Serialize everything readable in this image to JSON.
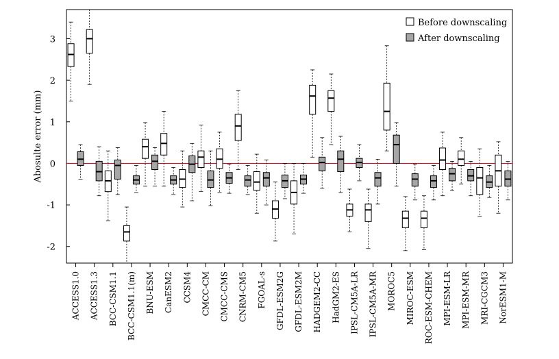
{
  "chart_data": {
    "type": "box",
    "ylabel": "Abosulte error (mm)",
    "ylim": [
      -2.4,
      3.7
    ],
    "yticks": [
      "-2",
      "-1",
      "0",
      "1",
      "2",
      "3"
    ],
    "reference_line": 0,
    "legend": {
      "position": "top-right",
      "entries": [
        "Before downscaling",
        "After downscaling"
      ]
    },
    "colors": {
      "before": "#ffffff",
      "after": "#a6a6a6",
      "reference": "#8b2b2b"
    },
    "categories": [
      "ACCESS1.0",
      "ACCESS1.3",
      "BCC-CSM1.1",
      "BCC-CSM1.1(m)",
      "BNU-ESM",
      "CanESM2",
      "CCSM4",
      "CMCC-CM",
      "CMCC-CMS",
      "CNRM-CM5",
      "FGOAL-s",
      "GFDL-ESM2G",
      "GFDL-ESM2M",
      "HADGEM2-CC",
      "HadGM2-ES",
      "IPSL-CM5A-LR",
      "IPSL-CM5A-MR",
      "MOROC5",
      "MIROC-ESM",
      "ROC-ESM-CHEM",
      "MPI-ESM-LR",
      "MPI-ESM-MR",
      "MRI-CGCM3",
      "NorESM1-M"
    ],
    "series": [
      {
        "name": "Before downscaling",
        "boxes": [
          {
            "min": 1.5,
            "q1": 2.33,
            "median": 2.62,
            "q3": 2.88,
            "max": 3.4
          },
          {
            "min": 1.9,
            "q1": 2.65,
            "median": 3.0,
            "q3": 3.22,
            "max": 3.7
          },
          {
            "min": -1.38,
            "q1": -0.68,
            "median": -0.42,
            "q3": -0.18,
            "max": 0.3
          },
          {
            "min": -2.4,
            "q1": -1.87,
            "median": -1.65,
            "q3": -1.5,
            "max": -1.05
          },
          {
            "min": -0.55,
            "q1": 0.12,
            "median": 0.4,
            "q3": 0.58,
            "max": 0.98
          },
          {
            "min": -0.55,
            "q1": 0.2,
            "median": 0.48,
            "q3": 0.72,
            "max": 1.25
          },
          {
            "min": -1.05,
            "q1": -0.58,
            "median": -0.38,
            "q3": -0.15,
            "max": 0.3
          },
          {
            "min": -0.68,
            "q1": -0.1,
            "median": 0.15,
            "q3": 0.3,
            "max": 0.92
          },
          {
            "min": -0.7,
            "q1": -0.12,
            "median": 0.1,
            "q3": 0.35,
            "max": 0.75
          },
          {
            "min": -0.15,
            "q1": 0.55,
            "median": 0.9,
            "q3": 1.18,
            "max": 1.75
          },
          {
            "min": -1.2,
            "q1": -0.65,
            "median": -0.45,
            "q3": -0.2,
            "max": 0.22
          },
          {
            "min": -1.87,
            "q1": -1.32,
            "median": -1.1,
            "q3": -0.9,
            "max": -0.45
          },
          {
            "min": -1.7,
            "q1": -0.98,
            "median": -0.7,
            "q3": -0.42,
            "max": 0.0
          },
          {
            "min": 0.15,
            "q1": 1.18,
            "median": 1.62,
            "q3": 1.88,
            "max": 2.25
          },
          {
            "min": 0.45,
            "q1": 1.25,
            "median": 1.57,
            "q3": 1.75,
            "max": 2.15
          },
          {
            "min": -1.65,
            "q1": -1.27,
            "median": -1.12,
            "q3": -0.98,
            "max": -0.62
          },
          {
            "min": -2.05,
            "q1": -1.4,
            "median": -1.12,
            "q3": -0.98,
            "max": -0.62
          },
          {
            "min": 0.3,
            "q1": 0.8,
            "median": 1.25,
            "q3": 1.93,
            "max": 2.83
          },
          {
            "min": -2.1,
            "q1": -1.55,
            "median": -1.32,
            "q3": -1.15,
            "max": -0.8
          },
          {
            "min": -2.08,
            "q1": -1.55,
            "median": -1.32,
            "q3": -1.15,
            "max": -0.78
          },
          {
            "min": -0.78,
            "q1": -0.15,
            "median": 0.08,
            "q3": 0.37,
            "max": 0.75
          },
          {
            "min": -0.5,
            "q1": -0.05,
            "median": 0.1,
            "q3": 0.3,
            "max": 0.62
          },
          {
            "min": -1.28,
            "q1": -0.75,
            "median": -0.35,
            "q3": -0.1,
            "max": 0.35
          },
          {
            "min": -1.2,
            "q1": -0.55,
            "median": -0.18,
            "q3": 0.2,
            "max": 0.52
          }
        ]
      },
      {
        "name": "After downscaling",
        "boxes": [
          {
            "min": -0.38,
            "q1": -0.05,
            "median": 0.1,
            "q3": 0.28,
            "max": 0.45
          },
          {
            "min": -0.78,
            "q1": -0.42,
            "median": -0.2,
            "q3": 0.05,
            "max": 0.4
          },
          {
            "min": -0.75,
            "q1": -0.38,
            "median": -0.05,
            "q3": 0.08,
            "max": 0.38
          },
          {
            "min": -0.7,
            "q1": -0.5,
            "median": -0.4,
            "q3": -0.3,
            "max": -0.05
          },
          {
            "min": -0.55,
            "q1": -0.15,
            "median": 0.05,
            "q3": 0.2,
            "max": 0.38
          },
          {
            "min": -0.75,
            "q1": -0.5,
            "median": -0.4,
            "q3": -0.3,
            "max": -0.1
          },
          {
            "min": -0.9,
            "q1": -0.22,
            "median": -0.02,
            "q3": 0.18,
            "max": 0.48
          },
          {
            "min": -1.02,
            "q1": -0.58,
            "median": -0.4,
            "q3": -0.18,
            "max": 0.3
          },
          {
            "min": -0.72,
            "q1": -0.48,
            "median": -0.35,
            "q3": -0.22,
            "max": -0.02
          },
          {
            "min": -0.75,
            "q1": -0.55,
            "median": -0.4,
            "q3": -0.3,
            "max": -0.05
          },
          {
            "min": -1.0,
            "q1": -0.55,
            "median": -0.35,
            "q3": -0.22,
            "max": 0.08
          },
          {
            "min": -0.85,
            "q1": -0.58,
            "median": -0.42,
            "q3": -0.28,
            "max": 0.0
          },
          {
            "min": -0.72,
            "q1": -0.5,
            "median": -0.38,
            "q3": -0.28,
            "max": 0.0
          },
          {
            "min": -0.6,
            "q1": -0.18,
            "median": 0.02,
            "q3": 0.15,
            "max": 0.62
          },
          {
            "min": -0.7,
            "q1": -0.2,
            "median": 0.1,
            "q3": 0.3,
            "max": 0.65
          },
          {
            "min": -0.42,
            "q1": -0.1,
            "median": 0.02,
            "q3": 0.12,
            "max": 0.45
          },
          {
            "min": -0.98,
            "q1": -0.55,
            "median": -0.35,
            "q3": -0.22,
            "max": 0.1
          },
          {
            "min": -0.55,
            "q1": 0.0,
            "median": 0.45,
            "q3": 0.68,
            "max": 0.98
          },
          {
            "min": -0.88,
            "q1": -0.55,
            "median": -0.38,
            "q3": -0.25,
            "max": -0.02
          },
          {
            "min": -0.88,
            "q1": -0.58,
            "median": -0.42,
            "q3": -0.3,
            "max": -0.05
          },
          {
            "min": -0.65,
            "q1": -0.42,
            "median": -0.25,
            "q3": -0.12,
            "max": 0.05
          },
          {
            "min": -0.78,
            "q1": -0.42,
            "median": -0.3,
            "q3": -0.15,
            "max": 0.05
          },
          {
            "min": -0.82,
            "q1": -0.58,
            "median": -0.45,
            "q3": -0.3,
            "max": -0.05
          },
          {
            "min": -0.88,
            "q1": -0.55,
            "median": -0.38,
            "q3": -0.18,
            "max": 0.05
          }
        ]
      }
    ]
  }
}
